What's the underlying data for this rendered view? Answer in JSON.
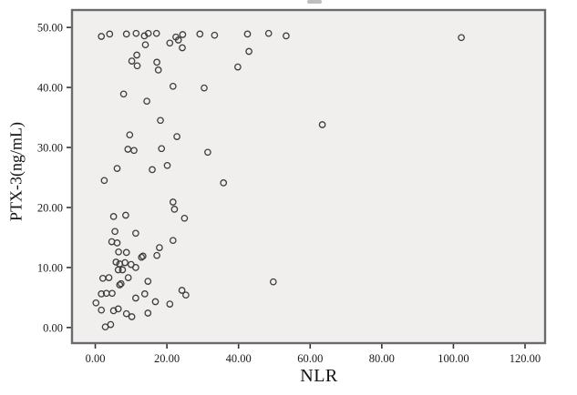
{
  "figure": {
    "xlabel": "NLR",
    "ylabel": "PTX-3(ng/mL)"
  },
  "chart_data": {
    "type": "scatter",
    "title": "",
    "xlabel": "NLR",
    "ylabel": "PTX-3(ng/mL)",
    "xlim": [
      -6.5,
      125.6
    ],
    "ylim": [
      -2.6,
      52.9
    ],
    "x_ticks": [
      0,
      20,
      40,
      60,
      80,
      100,
      120
    ],
    "x_tick_labels": [
      "0.00",
      "20.00",
      "40.00",
      "60.00",
      "80.00",
      "100.00",
      "120.00"
    ],
    "y_ticks": [
      0,
      10,
      20,
      30,
      40,
      50
    ],
    "y_tick_labels": [
      "0.00",
      "10.00",
      "20.00",
      "30.00",
      "40.00",
      "50.00"
    ],
    "grid": false,
    "legend": null,
    "marker": "open-circle",
    "colors": {
      "outer_bg": "#ffffff",
      "plot_bg": "#f0efee",
      "border": "#6b6b6b",
      "marker_stroke": "#3d3d3d",
      "tick": "#333333",
      "text": "#1a1a1a"
    },
    "points": [
      [
        1.7,
        48.5
      ],
      [
        4.0,
        48.9
      ],
      [
        8.7,
        48.9
      ],
      [
        11.4,
        49.0
      ],
      [
        13.7,
        48.6
      ],
      [
        14.8,
        49.0
      ],
      [
        17.1,
        49.0
      ],
      [
        22.5,
        48.4
      ],
      [
        24.4,
        48.8
      ],
      [
        29.2,
        48.9
      ],
      [
        33.3,
        48.7
      ],
      [
        42.5,
        48.9
      ],
      [
        48.4,
        49.0
      ],
      [
        53.3,
        48.6
      ],
      [
        102.2,
        48.3
      ],
      [
        14.0,
        47.1
      ],
      [
        20.8,
        47.4
      ],
      [
        23.2,
        47.9
      ],
      [
        24.3,
        46.6
      ],
      [
        42.9,
        46.0
      ],
      [
        10.2,
        44.4
      ],
      [
        11.6,
        45.4
      ],
      [
        11.7,
        43.6
      ],
      [
        17.2,
        44.2
      ],
      [
        17.6,
        42.9
      ],
      [
        39.8,
        43.4
      ],
      [
        7.9,
        38.9
      ],
      [
        14.4,
        37.7
      ],
      [
        21.7,
        40.2
      ],
      [
        30.4,
        39.9
      ],
      [
        18.2,
        34.5
      ],
      [
        9.6,
        32.1
      ],
      [
        22.8,
        31.8
      ],
      [
        63.4,
        33.8
      ],
      [
        9.1,
        29.7
      ],
      [
        10.8,
        29.5
      ],
      [
        18.5,
        29.8
      ],
      [
        31.4,
        29.2
      ],
      [
        6.1,
        26.5
      ],
      [
        15.9,
        26.3
      ],
      [
        20.1,
        27.0
      ],
      [
        2.5,
        24.5
      ],
      [
        35.8,
        24.1
      ],
      [
        21.7,
        20.9
      ],
      [
        22.1,
        19.7
      ],
      [
        24.9,
        18.2
      ],
      [
        5.1,
        18.5
      ],
      [
        8.5,
        18.7
      ],
      [
        5.5,
        16.0
      ],
      [
        11.3,
        15.7
      ],
      [
        4.6,
        14.3
      ],
      [
        6.1,
        14.1
      ],
      [
        21.7,
        14.5
      ],
      [
        6.5,
        12.6
      ],
      [
        8.7,
        12.5
      ],
      [
        17.9,
        13.3
      ],
      [
        17.2,
        12.0
      ],
      [
        12.9,
        11.7
      ],
      [
        13.3,
        11.9
      ],
      [
        5.8,
        10.9
      ],
      [
        6.8,
        10.6
      ],
      [
        8.3,
        10.8
      ],
      [
        10.0,
        10.5
      ],
      [
        11.3,
        10.0
      ],
      [
        6.4,
        9.6
      ],
      [
        7.6,
        9.6
      ],
      [
        9.2,
        8.3
      ],
      [
        2.1,
        8.2
      ],
      [
        3.8,
        8.3
      ],
      [
        14.7,
        7.7
      ],
      [
        7.2,
        7.3
      ],
      [
        6.8,
        7.1
      ],
      [
        49.7,
        7.6
      ],
      [
        1.7,
        5.6
      ],
      [
        3.1,
        5.7
      ],
      [
        4.7,
        5.7
      ],
      [
        11.3,
        4.9
      ],
      [
        13.8,
        5.6
      ],
      [
        16.8,
        4.3
      ],
      [
        20.8,
        3.9
      ],
      [
        24.2,
        6.2
      ],
      [
        25.3,
        5.4
      ],
      [
        0.2,
        4.1
      ],
      [
        1.7,
        2.9
      ],
      [
        5.1,
        2.8
      ],
      [
        6.4,
        3.1
      ],
      [
        8.7,
        2.3
      ],
      [
        10.2,
        1.8
      ],
      [
        14.7,
        2.4
      ],
      [
        2.8,
        0.1
      ],
      [
        4.3,
        0.5
      ]
    ]
  }
}
